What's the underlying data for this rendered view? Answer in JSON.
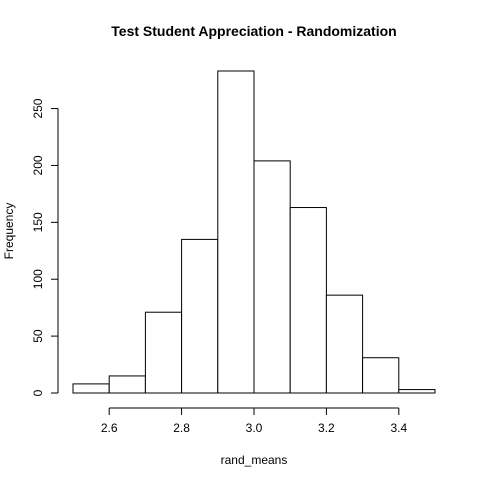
{
  "chart_data": {
    "type": "bar",
    "title": "Test Student Appreciation - Randomization",
    "xlabel": "rand_means",
    "ylabel": "Frequency",
    "bins": [
      {
        "from": 2.5,
        "to": 2.6,
        "count": 8
      },
      {
        "from": 2.6,
        "to": 2.7,
        "count": 15
      },
      {
        "from": 2.7,
        "to": 2.8,
        "count": 71
      },
      {
        "from": 2.8,
        "to": 2.9,
        "count": 135
      },
      {
        "from": 2.9,
        "to": 3.0,
        "count": 283
      },
      {
        "from": 3.0,
        "to": 3.1,
        "count": 204
      },
      {
        "from": 3.1,
        "to": 3.2,
        "count": 163
      },
      {
        "from": 3.2,
        "to": 3.3,
        "count": 86
      },
      {
        "from": 3.3,
        "to": 3.4,
        "count": 31
      },
      {
        "from": 3.4,
        "to": 3.5,
        "count": 3
      }
    ],
    "xlim": [
      2.5,
      3.5
    ],
    "ylim": [
      0,
      283
    ],
    "x_ticks": [
      "2.6",
      "2.8",
      "3.0",
      "3.2",
      "3.4"
    ],
    "y_ticks": [
      "0",
      "50",
      "100",
      "150",
      "200",
      "250"
    ],
    "grid": false,
    "legend": "none",
    "colors": {
      "bar_fill": "#ffffff",
      "bar_stroke": "#000000"
    }
  }
}
